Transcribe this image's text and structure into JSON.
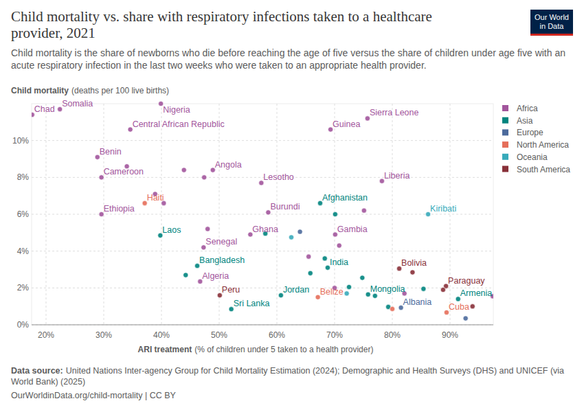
{
  "chart_data": {
    "type": "scatter",
    "title": "Child mortality vs. share with respiratory infections taken to a healthcare provider, 2021",
    "subtitle": "Child mortality is the share of newborns who die before reaching the age of five versus the share of children under age five with an acute respiratory infection in the last two weeks who were taken to an appropriate health provider.",
    "ylabel": "Child mortality",
    "ylabel_note": "(deaths per 100 live births)",
    "xlabel": "ARI treatment",
    "xlabel_note": "(% of children under 5 taken to a health provider)",
    "source_label": "Data source:",
    "source": "United Nations Inter-agency Group for Child Mortality Estimation (2024); Demographic and Health Surveys (DHS) and UNICEF (via World Bank) (2025)",
    "footer": "OurWorldinData.org/child-mortality | CC BY",
    "logo": [
      "Our World",
      "in Data"
    ],
    "xlim": [
      17.5,
      97.5
    ],
    "ylim": [
      0,
      12
    ],
    "xticks": [
      {
        "value": 20,
        "label": "20%"
      },
      {
        "value": 30,
        "label": "30%"
      },
      {
        "value": 40,
        "label": "40%"
      },
      {
        "value": 50,
        "label": "50%"
      },
      {
        "value": 60,
        "label": "60%"
      },
      {
        "value": 70,
        "label": "70%"
      },
      {
        "value": 80,
        "label": "80%"
      },
      {
        "value": 90,
        "label": "90%"
      }
    ],
    "yticks": [
      {
        "value": 0,
        "label": "0%"
      },
      {
        "value": 2,
        "label": "2%"
      },
      {
        "value": 4,
        "label": "4%"
      },
      {
        "value": 6,
        "label": "6%"
      },
      {
        "value": 8,
        "label": "8%"
      },
      {
        "value": 10,
        "label": "10%"
      }
    ],
    "grid": true,
    "legend": "right",
    "marker": "circle",
    "series": [
      {
        "name": "Africa",
        "color": "#a2559c",
        "x": [
          17.6,
          22.4,
          39.9,
          34.6,
          28.9,
          29.6,
          29.6,
          48.9,
          57.3,
          75.7,
          69.3,
          78.2,
          58.5,
          55.4,
          70.1,
          47.3,
          46.7,
          34.0,
          43.9,
          47.4,
          38.9,
          40.4,
          48.0,
          75.1,
          65.5,
          70.8,
          70.0,
          82.1,
          97.4
        ],
        "values": [
          11.4,
          11.7,
          12.0,
          10.6,
          9.1,
          8.0,
          6.0,
          8.4,
          7.7,
          11.2,
          10.6,
          7.8,
          6.1,
          4.9,
          4.9,
          4.2,
          2.35,
          8.6,
          8.4,
          8.0,
          7.1,
          6.6,
          5.2,
          6.2,
          3.7,
          4.3,
          2.0,
          1.7,
          1.55
        ],
        "labels": [
          "Chad",
          "Somalia",
          "Nigeria",
          "Central African Republic",
          "Benin",
          "Cameroon",
          "Ethiopia",
          "Angola",
          "Lesotho",
          "Sierra Leone",
          "Guinea",
          "Liberia",
          "Burundi",
          "Ghana",
          "Gambia",
          "Senegal",
          "Algeria",
          null,
          null,
          null,
          null,
          null,
          null,
          null,
          null,
          null,
          null,
          null,
          null
        ]
      },
      {
        "name": "Asia",
        "color": "#00847e",
        "x": [
          39.8,
          67.5,
          46.2,
          68.8,
          60.7,
          75.8,
          91.4,
          52.1,
          58.0,
          70.1,
          68.3,
          44.2,
          65.8,
          72.5,
          74.8,
          77.0,
          85.4,
          79.3
        ],
        "values": [
          4.85,
          6.6,
          3.2,
          3.1,
          1.6,
          1.65,
          1.4,
          0.85,
          4.95,
          6.0,
          3.6,
          2.7,
          2.8,
          2.05,
          2.55,
          1.57,
          1.95,
          0.97
        ],
        "labels": [
          "Laos",
          "Afghanistan",
          "Bangladesh",
          "India",
          "Jordan",
          "Mongolia",
          "Armenia",
          "Sri Lanka",
          null,
          null,
          null,
          null,
          null,
          null,
          null,
          null,
          null,
          null
        ]
      },
      {
        "name": "Europe",
        "color": "#4c6a9c",
        "x": [
          81.5,
          64.0,
          92.7
        ],
        "values": [
          0.93,
          5.05,
          0.35
        ],
        "labels": [
          "Albania",
          null,
          null
        ]
      },
      {
        "name": "North America",
        "color": "#e56e5a",
        "x": [
          37.1,
          67.1,
          89.4,
          80.0
        ],
        "values": [
          6.6,
          1.5,
          0.67,
          0.86
        ],
        "labels": [
          "Haiti",
          "Belize",
          "Cuba",
          null
        ]
      },
      {
        "name": "Oceania",
        "color": "#38aaba",
        "x": [
          86.2,
          62.5,
          72.1
        ],
        "values": [
          6.0,
          4.75,
          1.7
        ],
        "labels": [
          "Kiribati",
          null,
          null
        ]
      },
      {
        "name": "South America",
        "color": "#883039",
        "x": [
          81.2,
          89.3,
          50.1,
          83.5,
          88.8,
          93.9
        ],
        "values": [
          3.05,
          2.1,
          1.6,
          2.85,
          1.9,
          1.0
        ],
        "labels": [
          "Bolivia",
          "Paraguay",
          "Peru",
          null,
          null,
          null
        ]
      }
    ]
  }
}
